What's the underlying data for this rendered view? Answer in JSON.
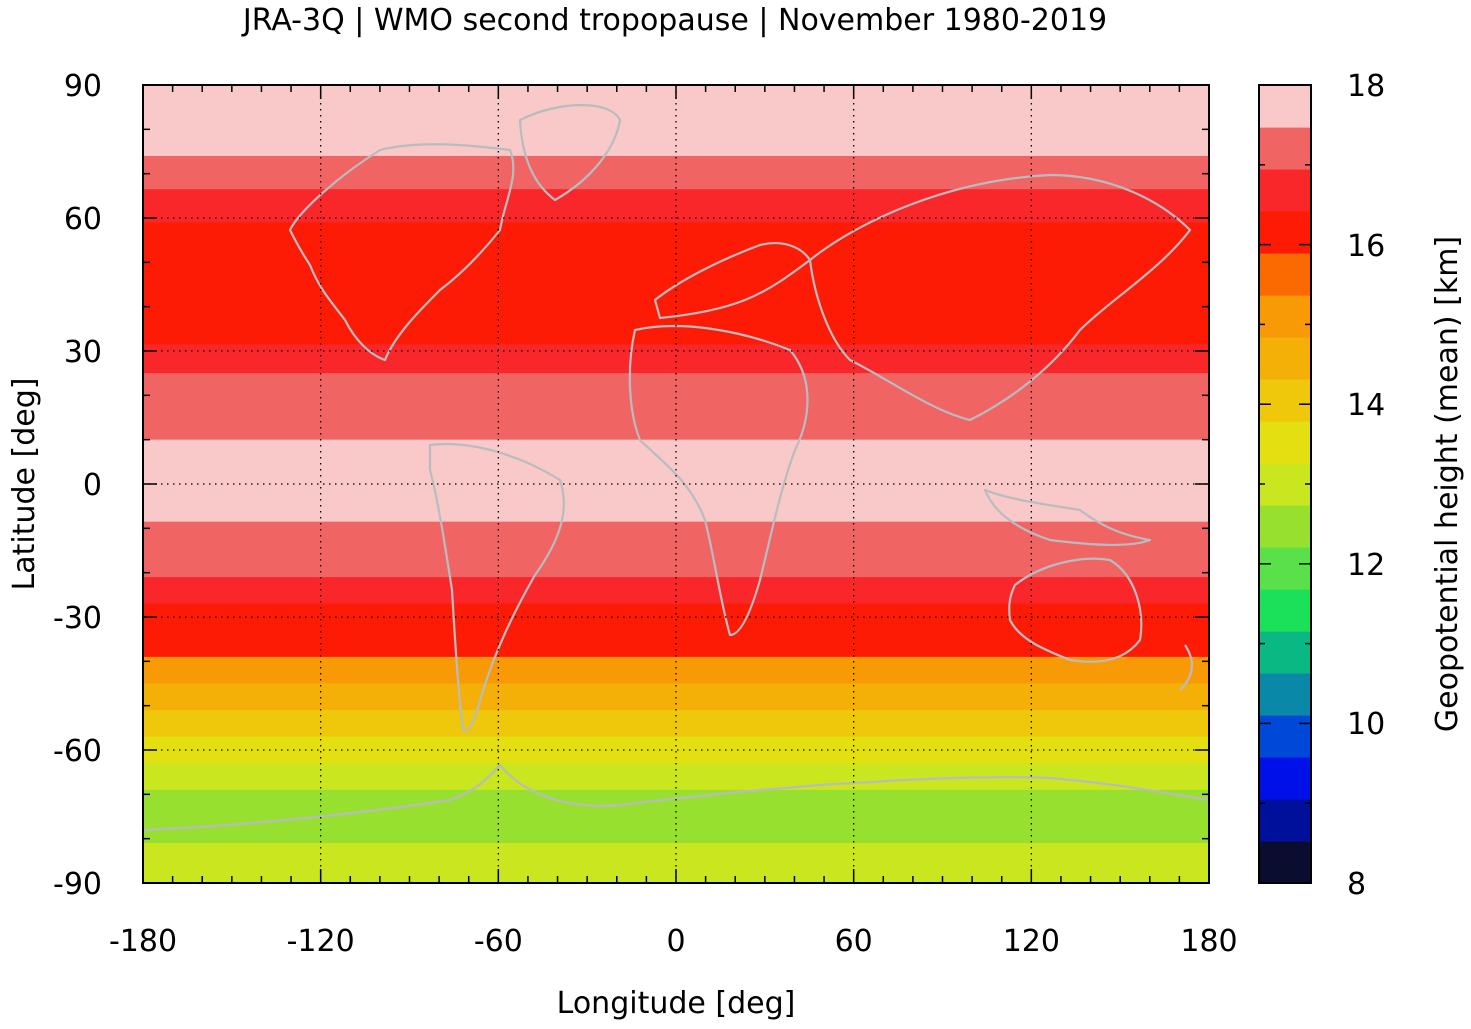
{
  "chart_data": {
    "type": "heatmap",
    "title": "JRA-3Q | WMO second tropopause | November 1980-2019",
    "xlabel": "Longitude [deg]",
    "ylabel": "Latitude [deg]",
    "colorbar_label": "Geopotential height (mean) [km]",
    "xlim": [
      -180,
      180
    ],
    "ylim": [
      -90,
      90
    ],
    "x_ticks": [
      "-180",
      "-120",
      "-60",
      "0",
      "60",
      "120",
      "180"
    ],
    "y_ticks": [
      "90",
      "60",
      "30",
      "0",
      "-30",
      "-60",
      "-90"
    ],
    "colorbar_range": [
      8,
      18
    ],
    "colorbar_ticks": [
      "18",
      "16",
      "14",
      "12",
      "10",
      "8"
    ],
    "colorbar_colors": [
      "#0b0d2e",
      "#00109a",
      "#0010e8",
      "#0048d8",
      "#0a88a8",
      "#0ab883",
      "#1ae05a",
      "#5ae048",
      "#98e030",
      "#c9e61e",
      "#e3df10",
      "#efc80c",
      "#f5b008",
      "#f79a06",
      "#fa6a00",
      "#fd1b05",
      "#f9262a",
      "#f06464",
      "#f9c8c8"
    ],
    "grid": "dotted",
    "zonal_means": [
      {
        "lat": 87,
        "km": 17.6
      },
      {
        "lat": 78,
        "km": 17.5
      },
      {
        "lat": 70,
        "km": 17.2
      },
      {
        "lat": 63,
        "km": 16.7
      },
      {
        "lat": 55,
        "km": 16.1
      },
      {
        "lat": 45,
        "km": 15.9
      },
      {
        "lat": 35,
        "km": 16.1
      },
      {
        "lat": 28,
        "km": 16.6
      },
      {
        "lat": 22,
        "km": 17.0
      },
      {
        "lat": 15,
        "km": 17.4
      },
      {
        "lat": 5,
        "km": 17.6
      },
      {
        "lat": 0,
        "km": 17.7
      },
      {
        "lat": -5,
        "km": 17.6
      },
      {
        "lat": -12,
        "km": 17.4
      },
      {
        "lat": -18,
        "km": 17.0
      },
      {
        "lat": -24,
        "km": 16.7
      },
      {
        "lat": -30,
        "km": 16.2
      },
      {
        "lat": -36,
        "km": 15.9
      },
      {
        "lat": -42,
        "km": 15.3
      },
      {
        "lat": -48,
        "km": 14.7
      },
      {
        "lat": -54,
        "km": 14.2
      },
      {
        "lat": -60,
        "km": 13.6
      },
      {
        "lat": -66,
        "km": 12.8
      },
      {
        "lat": -72,
        "km": 12.6
      },
      {
        "lat": -78,
        "km": 12.7
      },
      {
        "lat": -84,
        "km": 13.0
      },
      {
        "lat": -89,
        "km": 13.1
      }
    ]
  }
}
